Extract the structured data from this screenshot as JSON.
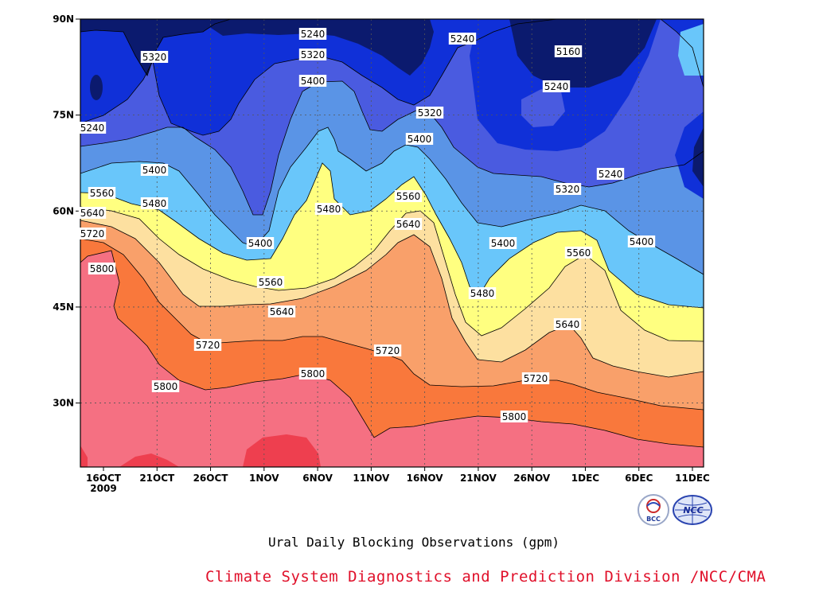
{
  "chart_data": {
    "type": "contour",
    "title": "",
    "xlabel": "",
    "ylabel": "",
    "x_ticks": [
      "16OCT",
      "21OCT",
      "26OCT",
      "1NOV",
      "6NOV",
      "11NOV",
      "16NOV",
      "21NOV",
      "26NOV",
      "1DEC",
      "6DEC",
      "11DEC"
    ],
    "x_year_label": "2009",
    "y_ticks": [
      "30N",
      "45N",
      "60N",
      "75N",
      "90N"
    ],
    "ylim_deg": [
      20,
      90
    ],
    "grid": true,
    "units": "gpm",
    "levels": [
      5160,
      5240,
      5320,
      5400,
      5480,
      5560,
      5640,
      5720,
      5800
    ],
    "contour_labels": [
      {
        "value": "5240"
      },
      {
        "value": "5240"
      },
      {
        "value": "5160"
      },
      {
        "value": "5320"
      },
      {
        "value": "5320"
      },
      {
        "value": "5240"
      },
      {
        "value": "5400"
      },
      {
        "value": "5240"
      },
      {
        "value": "5320"
      },
      {
        "value": "5400"
      },
      {
        "value": "5400"
      },
      {
        "value": "5240"
      },
      {
        "value": "5320"
      },
      {
        "value": "5560"
      },
      {
        "value": "5480"
      },
      {
        "value": "5560"
      },
      {
        "value": "5480"
      },
      {
        "value": "5640"
      },
      {
        "value": "5640"
      },
      {
        "value": "5720"
      },
      {
        "value": "5400"
      },
      {
        "value": "5400"
      },
      {
        "value": "5400"
      },
      {
        "value": "5560"
      },
      {
        "value": "5800"
      },
      {
        "value": "5560"
      },
      {
        "value": "5480"
      },
      {
        "value": "5640"
      },
      {
        "value": "5640"
      },
      {
        "value": "5720"
      },
      {
        "value": "5720"
      },
      {
        "value": "5720"
      },
      {
        "value": "5800"
      },
      {
        "value": "5800"
      },
      {
        "value": "5800"
      }
    ],
    "band_colors": {
      "below_5160": "#0b1a6e",
      "5160_5240": "#1030d8",
      "5240_5320": "#4a5be0",
      "5320_5400": "#5a94e6",
      "5400_5480": "#69c6fa",
      "5480_5560": "#ffff80",
      "5560_5640": "#fde0a0",
      "5640_5720": "#f9a06a",
      "5720_5800": "#f9783c",
      "5800_5880": "#f57082",
      "above_5880": "#ee3f4f"
    }
  },
  "footer": {
    "subtitle": "Ural Daily Blocking Observations (gpm)",
    "credit": "Climate System Diagnostics and Prediction Division /NCC/CMA",
    "logo_bcc_text": "BCC",
    "logo_ncc_text": "NCC"
  }
}
